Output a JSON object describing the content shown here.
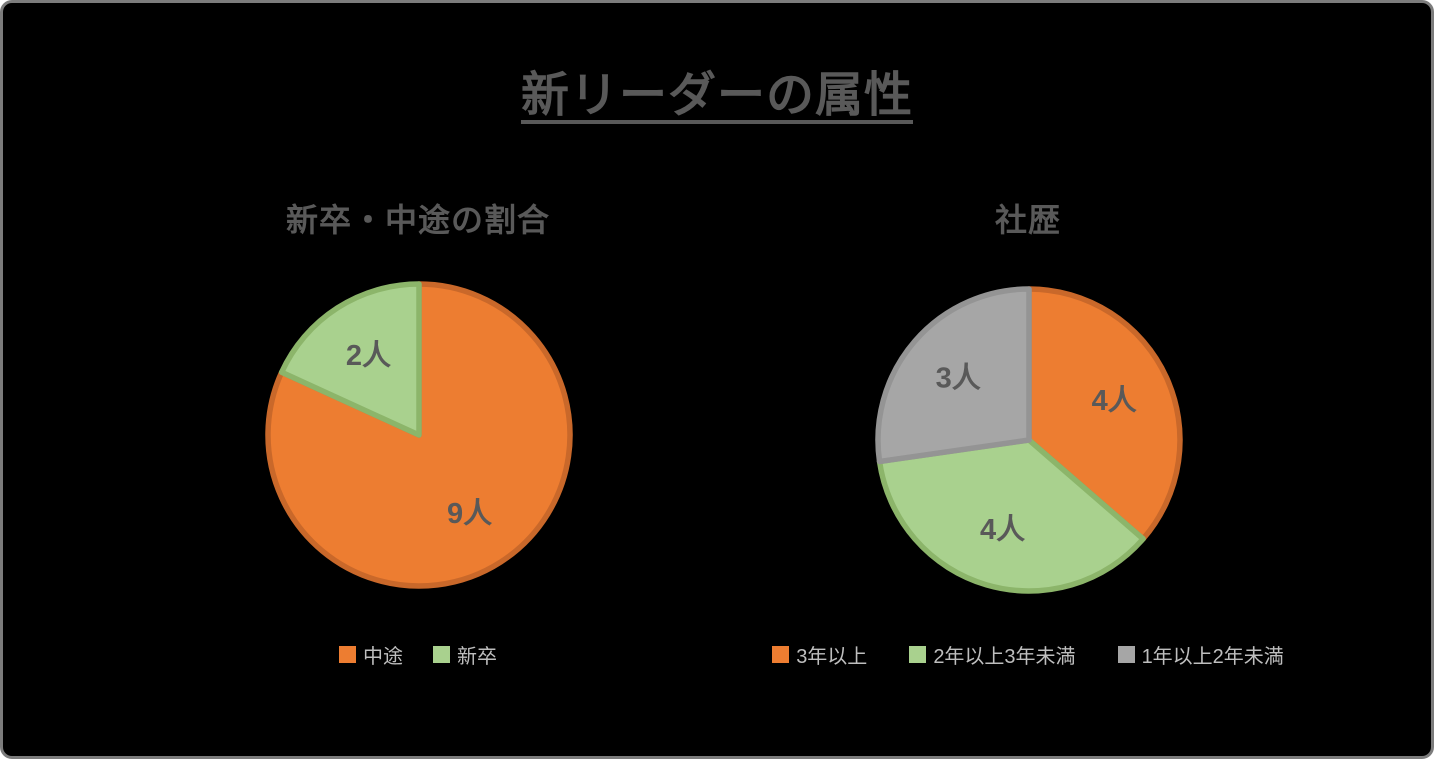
{
  "page": {
    "title": "新リーダーの属性",
    "background": "#000000",
    "border_color": "#7c7c7c",
    "title_color": "#595959"
  },
  "colors": {
    "orange": "#ED7D31",
    "green": "#A9D18E",
    "gray": "#A6A6A6",
    "data_label_text": "#595959",
    "legend_text": "#BEBEBE"
  },
  "chart_data": [
    {
      "type": "pie",
      "title": "新卒・中途の割合",
      "labels": [
        "中途",
        "新卒"
      ],
      "values": [
        9,
        2
      ],
      "data_labels": [
        "9人",
        "2人"
      ],
      "colors": [
        "#ED7D31",
        "#A9D18E"
      ],
      "border_colors": [
        "#C9682A",
        "#8CB56A"
      ],
      "start_angle_deg": 0,
      "direction": "clockwise",
      "legend_position": "bottom"
    },
    {
      "type": "pie",
      "title": "社歴",
      "labels": [
        "3年以上",
        "2年以上3年未満",
        "1年以上2年未満"
      ],
      "values": [
        4,
        4,
        3
      ],
      "data_labels": [
        "4人",
        "4人",
        "3人"
      ],
      "colors": [
        "#ED7D31",
        "#A9D18E",
        "#A6A6A6"
      ],
      "border_colors": [
        "#C9682A",
        "#8CB56A",
        "#949494"
      ],
      "start_angle_deg": 0,
      "direction": "clockwise",
      "legend_position": "bottom"
    }
  ]
}
